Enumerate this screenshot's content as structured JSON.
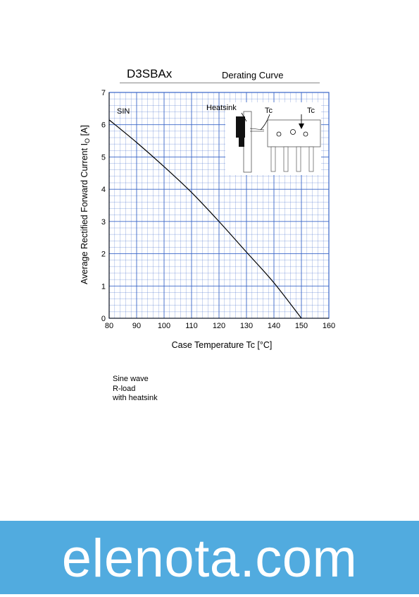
{
  "header": {
    "part_number": "D3SBAx",
    "subtitle": "Derating Curve"
  },
  "chart_data": {
    "type": "line",
    "title": "",
    "xlabel": "Case Temperature  Tc  [°C]",
    "ylabel_main": "Average Rectified Forward Current  I",
    "ylabel_sub": "O",
    "ylabel_unit": "  [A]",
    "xlim": [
      80,
      160
    ],
    "ylim": [
      0,
      7
    ],
    "xticks": [
      80,
      90,
      100,
      110,
      120,
      130,
      140,
      150,
      160
    ],
    "yticks": [
      0,
      1,
      2,
      3,
      4,
      5,
      6,
      7
    ],
    "grid": true,
    "series": [
      {
        "name": "SIN",
        "x": [
          80,
          90,
          100,
          110,
          120,
          130,
          140,
          150
        ],
        "y": [
          6.15,
          5.45,
          4.7,
          3.9,
          3.0,
          2.05,
          1.1,
          0
        ]
      }
    ],
    "inset": {
      "heatsink_label": "Heatsink",
      "tc_label_left": "Tc",
      "tc_label_right": "Tc"
    }
  },
  "notes": {
    "line1": "Sine wave",
    "line2": "R-load",
    "line3": "with  heatsink"
  },
  "footer": {
    "watermark": "elenota.com",
    "background_color": "#51abdf",
    "grid_color": "#3a66c8"
  }
}
